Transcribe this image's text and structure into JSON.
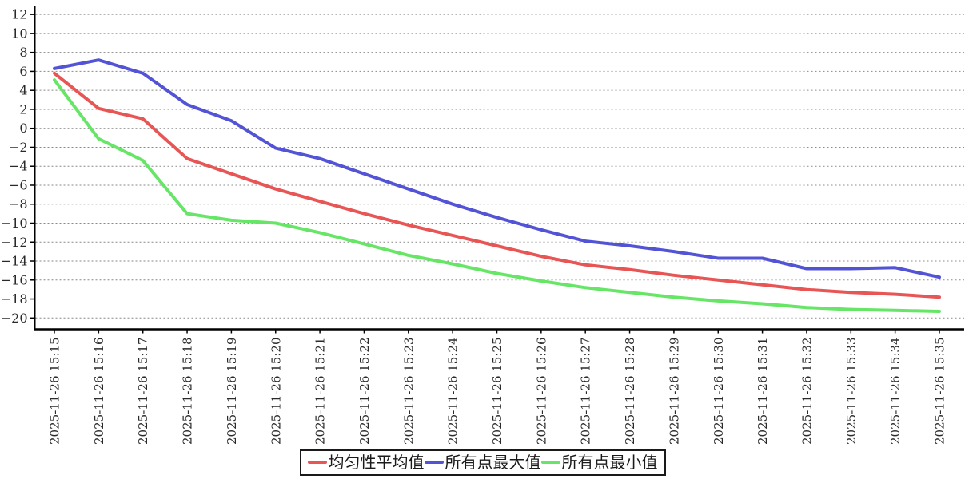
{
  "chart_data": {
    "type": "line",
    "title": "",
    "xlabel": "",
    "ylabel": "",
    "x_categories": [
      "2025-11-26 15:15",
      "2025-11-26 15:16",
      "2025-11-26 15:17",
      "2025-11-26 15:18",
      "2025-11-26 15:19",
      "2025-11-26 15:20",
      "2025-11-26 15:21",
      "2025-11-26 15:22",
      "2025-11-26 15:23",
      "2025-11-26 15:24",
      "2025-11-26 15:25",
      "2025-11-26 15:26",
      "2025-11-26 15:27",
      "2025-11-26 15:28",
      "2025-11-26 15:29",
      "2025-11-26 15:30",
      "2025-11-26 15:31",
      "2025-11-26 15:32",
      "2025-11-26 15:33",
      "2025-11-26 15:34",
      "2025-11-26 15:35"
    ],
    "series": [
      {
        "key": "avg",
        "name": "均匀性平均值",
        "color": "#e85555",
        "values": [
          5.8,
          2.1,
          1.0,
          -3.2,
          -4.8,
          -6.4,
          -7.7,
          -9.0,
          -10.2,
          -11.3,
          -12.4,
          -13.5,
          -14.4,
          -14.9,
          -15.5,
          -16.0,
          -16.5,
          -17.0,
          -17.3,
          -17.5,
          -17.8
        ]
      },
      {
        "key": "max",
        "name": "所有点最大值",
        "color": "#5353d6",
        "values": [
          6.3,
          7.2,
          5.8,
          2.5,
          0.8,
          -2.1,
          -3.2,
          -4.8,
          -6.4,
          -8.0,
          -9.4,
          -10.7,
          -11.9,
          -12.4,
          -13.0,
          -13.7,
          -13.7,
          -14.8,
          -14.8,
          -14.7,
          -15.7
        ]
      },
      {
        "key": "min",
        "name": "所有点最小值",
        "color": "#66e566",
        "values": [
          5.1,
          -1.1,
          -3.4,
          -9.0,
          -9.7,
          -10.0,
          -11.0,
          -12.2,
          -13.4,
          -14.3,
          -15.3,
          -16.1,
          -16.8,
          -17.3,
          -17.8,
          -18.2,
          -18.5,
          -18.9,
          -19.1,
          -19.2,
          -19.3
        ]
      }
    ],
    "ylim": [
      -20,
      12
    ],
    "ytick_step": 2,
    "grid": true,
    "legend_position": "bottom",
    "colors": {
      "grid": "#8a8a8a",
      "axis": "#000000",
      "tick_label": "#2a2a2a",
      "background": "#ffffff"
    }
  }
}
